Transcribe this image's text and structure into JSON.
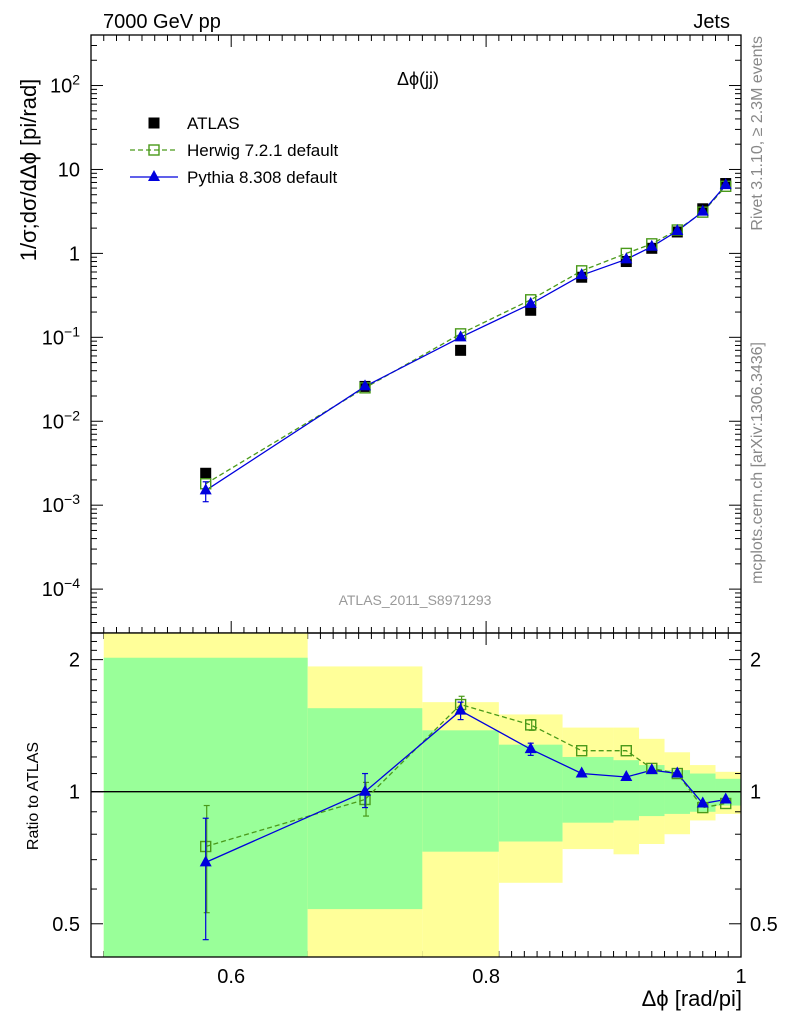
{
  "header": {
    "left": "7000 GeV pp",
    "right": "Jets"
  },
  "side_texts": {
    "rivet": "Rivet 3.1.10, ≥ 2.3M events",
    "mcplots": "mcplots.cern.ch [arXiv:1306.3436]"
  },
  "analysis_code": "ATLAS_2011_S8971293",
  "colors": {
    "data": "#000000",
    "herwig": "#4a9a1a",
    "pythia": "#0000dd",
    "band_inner": "#99ff99",
    "band_outer": "#ffff99"
  },
  "chart_data": [
    {
      "type": "scatter",
      "title": "Δϕ(jj)",
      "ylabel": "1/σ;dσ/dΔϕ [pi/rad]",
      "y_scale": "log",
      "ylim": [
        3e-05,
        400
      ],
      "xlim": [
        0.49,
        1.0
      ],
      "y_ticks": [
        {
          "v": 0.0001,
          "base": "10",
          "exp": "−4"
        },
        {
          "v": 0.001,
          "base": "10",
          "exp": "−3"
        },
        {
          "v": 0.01,
          "base": "10",
          "exp": "−2"
        },
        {
          "v": 0.1,
          "base": "10",
          "exp": "−1"
        },
        {
          "v": 1,
          "base": "1",
          "exp": ""
        },
        {
          "v": 10,
          "base": "10",
          "exp": ""
        },
        {
          "v": 100,
          "base": "10",
          "exp": "2"
        }
      ],
      "legend": [
        {
          "label": "ATLAS",
          "marker": "square"
        },
        {
          "label": "Herwig 7.2.1 default",
          "marker": "open-square"
        },
        {
          "label": "Pythia 8.308 default",
          "marker": "triangle"
        }
      ],
      "series": [
        {
          "name": "ATLAS",
          "points": [
            {
              "x": 0.58,
              "y": 0.0024
            },
            {
              "x": 0.705,
              "y": 0.026
            },
            {
              "x": 0.78,
              "y": 0.07
            },
            {
              "x": 0.835,
              "y": 0.21
            },
            {
              "x": 0.875,
              "y": 0.52
            },
            {
              "x": 0.91,
              "y": 0.8
            },
            {
              "x": 0.93,
              "y": 1.15
            },
            {
              "x": 0.95,
              "y": 1.8
            },
            {
              "x": 0.97,
              "y": 3.4
            },
            {
              "x": 0.988,
              "y": 6.8
            }
          ]
        },
        {
          "name": "Herwig 7.2.1 default",
          "points": [
            {
              "x": 0.58,
              "y": 0.0018
            },
            {
              "x": 0.705,
              "y": 0.025
            },
            {
              "x": 0.78,
              "y": 0.11
            },
            {
              "x": 0.835,
              "y": 0.28
            },
            {
              "x": 0.875,
              "y": 0.62
            },
            {
              "x": 0.91,
              "y": 1.0
            },
            {
              "x": 0.93,
              "y": 1.3
            },
            {
              "x": 0.95,
              "y": 1.9
            },
            {
              "x": 0.97,
              "y": 3.1
            },
            {
              "x": 0.988,
              "y": 6.3
            }
          ]
        },
        {
          "name": "Pythia 8.308 default",
          "points": [
            {
              "x": 0.58,
              "y": 0.0015,
              "lo": 0.0011,
              "hi": 0.0019
            },
            {
              "x": 0.705,
              "y": 0.026
            },
            {
              "x": 0.78,
              "y": 0.1
            },
            {
              "x": 0.835,
              "y": 0.25
            },
            {
              "x": 0.875,
              "y": 0.55
            },
            {
              "x": 0.91,
              "y": 0.85
            },
            {
              "x": 0.93,
              "y": 1.2
            },
            {
              "x": 0.95,
              "y": 1.85
            },
            {
              "x": 0.97,
              "y": 3.15
            },
            {
              "x": 0.988,
              "y": 6.5
            }
          ]
        }
      ]
    },
    {
      "type": "line",
      "ylabel": "Ratio to ATLAS",
      "xlabel": "Δϕ [rad/pi]",
      "y_scale": "log",
      "ylim": [
        0.42,
        2.3
      ],
      "xlim": [
        0.49,
        1.0
      ],
      "x_ticks": [
        "0.6",
        "0.8",
        "1"
      ],
      "y_ticks": [
        {
          "v": 0.5,
          "label": "0.5"
        },
        {
          "v": 1,
          "label": "1"
        },
        {
          "v": 2,
          "label": "2"
        }
      ],
      "bins": [
        {
          "x0": 0.5,
          "x1": 0.66,
          "in_lo": 0.42,
          "in_hi": 2.02,
          "out_lo": 0.42,
          "out_hi": 2.3
        },
        {
          "x0": 0.66,
          "x1": 0.75,
          "in_lo": 0.54,
          "in_hi": 1.55,
          "out_lo": 0.42,
          "out_hi": 1.93
        },
        {
          "x0": 0.75,
          "x1": 0.81,
          "in_lo": 0.73,
          "in_hi": 1.38,
          "out_lo": 0.42,
          "out_hi": 1.6
        },
        {
          "x0": 0.81,
          "x1": 0.86,
          "in_lo": 0.77,
          "in_hi": 1.28,
          "out_lo": 0.62,
          "out_hi": 1.5
        },
        {
          "x0": 0.86,
          "x1": 0.9,
          "in_lo": 0.85,
          "in_hi": 1.2,
          "out_lo": 0.74,
          "out_hi": 1.4
        },
        {
          "x0": 0.9,
          "x1": 0.92,
          "in_lo": 0.86,
          "in_hi": 1.18,
          "out_lo": 0.72,
          "out_hi": 1.4
        },
        {
          "x0": 0.92,
          "x1": 0.94,
          "in_lo": 0.88,
          "in_hi": 1.15,
          "out_lo": 0.76,
          "out_hi": 1.32
        },
        {
          "x0": 0.94,
          "x1": 0.96,
          "in_lo": 0.89,
          "in_hi": 1.12,
          "out_lo": 0.8,
          "out_hi": 1.23
        },
        {
          "x0": 0.96,
          "x1": 0.98,
          "in_lo": 0.9,
          "in_hi": 1.1,
          "out_lo": 0.86,
          "out_hi": 1.15
        },
        {
          "x0": 0.98,
          "x1": 1.0,
          "in_lo": 0.93,
          "in_hi": 1.07,
          "out_lo": 0.89,
          "out_hi": 1.11
        }
      ],
      "series": [
        {
          "name": "Herwig 7.2.1 default",
          "points": [
            {
              "x": 0.58,
              "y": 0.75,
              "lo": 0.53,
              "hi": 0.93
            },
            {
              "x": 0.705,
              "y": 0.96,
              "lo": 0.88,
              "hi": 1.05
            },
            {
              "x": 0.78,
              "y": 1.58,
              "lo": 1.52,
              "hi": 1.65
            },
            {
              "x": 0.835,
              "y": 1.42,
              "lo": 1.38,
              "hi": 1.46
            },
            {
              "x": 0.875,
              "y": 1.24
            },
            {
              "x": 0.91,
              "y": 1.24
            },
            {
              "x": 0.93,
              "y": 1.13
            },
            {
              "x": 0.95,
              "y": 1.1
            },
            {
              "x": 0.97,
              "y": 0.92
            },
            {
              "x": 0.988,
              "y": 0.94
            }
          ]
        },
        {
          "name": "Pythia 8.308 default",
          "points": [
            {
              "x": 0.58,
              "y": 0.69,
              "lo": 0.46,
              "hi": 0.87
            },
            {
              "x": 0.705,
              "y": 1.0,
              "lo": 0.92,
              "hi": 1.1
            },
            {
              "x": 0.78,
              "y": 1.53,
              "lo": 1.46,
              "hi": 1.6
            },
            {
              "x": 0.835,
              "y": 1.25,
              "lo": 1.21,
              "hi": 1.29
            },
            {
              "x": 0.875,
              "y": 1.1
            },
            {
              "x": 0.91,
              "y": 1.08
            },
            {
              "x": 0.93,
              "y": 1.12
            },
            {
              "x": 0.95,
              "y": 1.1
            },
            {
              "x": 0.97,
              "y": 0.94
            },
            {
              "x": 0.988,
              "y": 0.96
            }
          ]
        }
      ]
    }
  ]
}
